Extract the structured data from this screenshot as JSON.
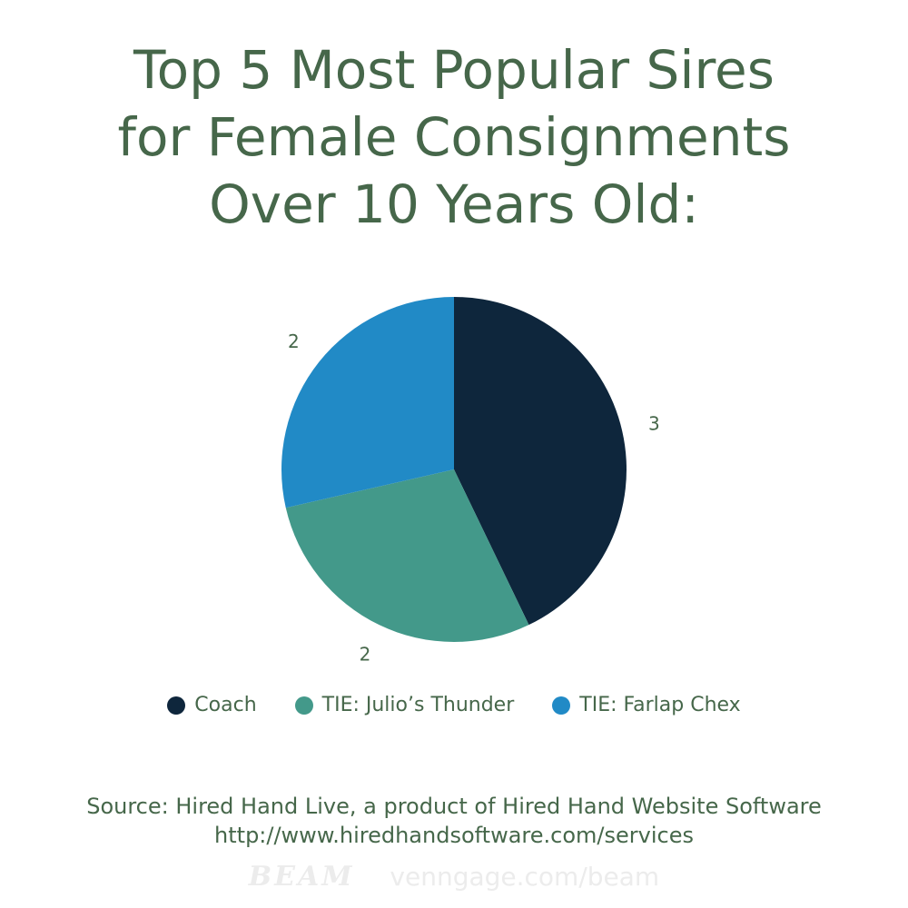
{
  "title": {
    "line1": "Top 5 Most Popular Sires",
    "line2": "for Female Consignments",
    "line3": "Over 10 Years Old:"
  },
  "chart_data": {
    "type": "pie",
    "title": "Top 5 Most Popular Sires for Female Consignments Over 10 Years Old:",
    "slices": [
      {
        "label": "Coach",
        "value": 3,
        "color": "#0e263c"
      },
      {
        "label": "TIE: Julio’s Thunder",
        "value": 2,
        "color": "#43998a"
      },
      {
        "label": "TIE: Farlap Chex",
        "value": 2,
        "color": "#218ac6"
      }
    ],
    "legend_position": "bottom"
  },
  "source": {
    "line1": "Source: Hired Hand Live, a product of Hired Hand Website Software",
    "line2": "http://www.hiredhandsoftware.com/services"
  },
  "footer": {
    "brand": "BEAM",
    "url": "venngage.com/beam"
  }
}
